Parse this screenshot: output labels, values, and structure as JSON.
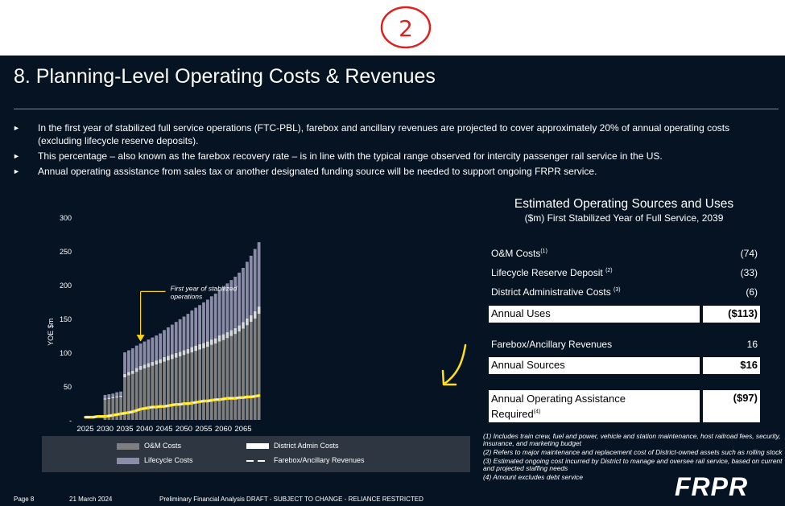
{
  "handwriting_mark": "2",
  "slide_title": "8. Planning-Level Operating Costs & Revenues",
  "bullets": [
    "In the first year of stabilized full service operations (FTC-PBL), farebox and ancillary revenues are projected to cover approximately 20% of annual operating costs (excluding lifecycle reserve deposits).",
    "This percentage – also known as the farebox recovery rate – is in line with the typical range observed for intercity passenger rail service in the US.",
    "Annual operating assistance from sales tax or another designated funding source will be needed to support ongoing FRPR service."
  ],
  "bullet_marker": "►",
  "chart_data": {
    "type": "bar",
    "stacked": true,
    "x": [
      2025,
      2026,
      2027,
      2028,
      2029,
      2030,
      2031,
      2032,
      2033,
      2034,
      2035,
      2036,
      2037,
      2038,
      2039,
      2040,
      2041,
      2042,
      2043,
      2044,
      2045,
      2046,
      2047,
      2048,
      2049,
      2050,
      2051,
      2052,
      2053,
      2054,
      2055,
      2056,
      2057,
      2058,
      2059,
      2060,
      2061,
      2062,
      2063,
      2064,
      2065,
      2066,
      2067,
      2068,
      2069
    ],
    "xticks": [
      "2025",
      "2030",
      "2035",
      "2040",
      "2045",
      "2050",
      "2055",
      "2060",
      "2065"
    ],
    "yticks": [
      "300",
      "250",
      "200",
      "150",
      "100",
      "50",
      "-"
    ],
    "ylabel": "YOE $m",
    "ylim": [
      0,
      300
    ],
    "series": [
      {
        "name": "O&M Costs",
        "color": "#7f7f7f",
        "values": [
          0,
          0,
          0,
          0,
          0,
          30,
          31,
          32,
          33,
          34,
          63,
          66,
          68,
          71,
          74,
          76,
          78,
          80,
          82,
          84,
          86,
          88,
          90,
          92,
          94,
          96,
          98,
          100,
          102,
          104,
          106,
          108,
          111,
          113,
          116,
          118,
          121,
          124,
          127,
          131,
          135,
          140,
          145,
          150,
          157
        ]
      },
      {
        "name": "District Admin Costs",
        "color": "#d9d9d9",
        "values": [
          0,
          0,
          0,
          0,
          0,
          2,
          2,
          2,
          2,
          2,
          5,
          5,
          5,
          6,
          6,
          6,
          6,
          6,
          6,
          6,
          7,
          7,
          7,
          7,
          7,
          7,
          7,
          8,
          8,
          8,
          8,
          8,
          8,
          8,
          9,
          9,
          9,
          9,
          9,
          9,
          10,
          10,
          10,
          11,
          11
        ]
      },
      {
        "name": "Lifecycle Costs",
        "color": "#8a8ca8",
        "values": [
          0,
          0,
          0,
          0,
          0,
          5,
          5,
          5,
          6,
          6,
          32,
          32,
          33,
          33,
          33,
          34,
          35,
          36,
          37,
          38,
          40,
          42,
          44,
          46,
          48,
          50,
          52,
          54,
          56,
          58,
          60,
          62,
          64,
          66,
          68,
          70,
          72,
          74,
          76,
          78,
          80,
          84,
          88,
          92,
          95
        ]
      },
      {
        "name": "Farebox/Ancillary Revenues",
        "color": "#ffffff",
        "style": "dashed-line",
        "values": [
          4,
          4,
          4,
          5,
          5,
          5,
          6,
          7,
          8,
          9,
          10,
          11,
          12,
          14,
          16,
          17,
          18,
          19,
          19,
          20,
          20,
          21,
          22,
          23,
          23,
          24,
          24,
          25,
          26,
          27,
          28,
          28,
          29,
          30,
          30,
          31,
          32,
          32,
          32,
          33,
          33,
          34,
          34,
          35,
          36
        ]
      }
    ],
    "annotation": {
      "text": "First year of stabilized operations",
      "x": 2039
    },
    "legend": [
      {
        "label": "O&M Costs",
        "kind": "box",
        "color": "#7f7f7f"
      },
      {
        "label": "District Admin Costs",
        "kind": "box",
        "color": "#ffffff"
      },
      {
        "label": "Lifecycle Costs",
        "kind": "box",
        "color": "#8a8ca8"
      },
      {
        "label": "Farebox/Ancillary Revenues",
        "kind": "dash",
        "color": "#ffffff"
      }
    ],
    "legend_position": "below",
    "highlight": {
      "color": "#ffe01a",
      "over_series": "Farebox/Ancillary Revenues"
    }
  },
  "panel": {
    "title": "Estimated Operating Sources and Uses",
    "subtitle": "($m) First Stabilized Year of Full Service, 2039",
    "rows": [
      {
        "label": "O&M Costs",
        "note": "(1)",
        "value": "(74)"
      },
      {
        "label": "Lifecycle Reserve Deposit",
        "note": "(2)",
        "value": "(33)"
      },
      {
        "label": "District Administrative Costs",
        "note": "(3)",
        "value": "(6)"
      }
    ],
    "uses": {
      "label": "Annual Uses",
      "value": "($113)"
    },
    "farebox": {
      "label": "Farebox/Ancillary Revenues",
      "value": "16"
    },
    "sources": {
      "label": "Annual Sources",
      "value": "$16"
    },
    "assistance": {
      "label_line1": "Annual Operating Assistance",
      "label_line2": "Required",
      "note": "(4)",
      "value": "($97)"
    }
  },
  "notes": [
    "(1) Includes train crew, fuel and power, vehicle and station maintenance, host railroad fees, security, insurance, and marketing budget",
    "(2) Refers to major maintenance and replacement cost of District-owned assets such as rolling stock",
    "(3) Estimated ongoing cost incurred by District to manage and oversee rail service, based on current and projected staffing needs",
    "(4) Amount excludes debt service"
  ],
  "footer": {
    "page": "Page 8",
    "date": "21 March 2024",
    "disclaimer": "Preliminary Financial Analysis DRAFT - SUBJECT TO CHANGE - RELIANCE RESTRICTED"
  },
  "logo": "FRPR"
}
